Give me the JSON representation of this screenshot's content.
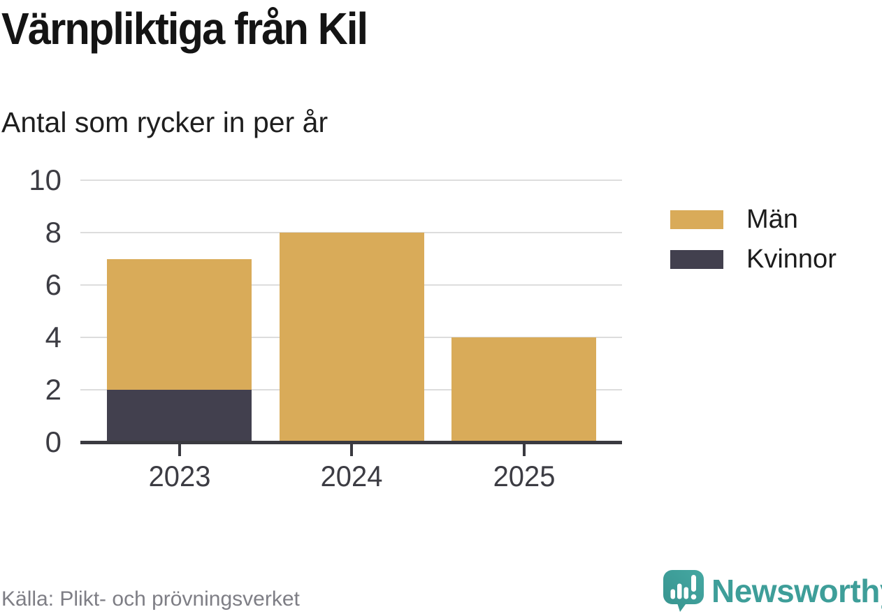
{
  "header": {
    "title": "Värnpliktiga från Kil",
    "subtitle": "Antal som rycker in per år"
  },
  "chart_data": {
    "type": "bar",
    "stacked": true,
    "title": "Värnpliktiga från Kil",
    "subtitle": "Antal som rycker in per år",
    "categories": [
      "2023",
      "2024",
      "2025"
    ],
    "series": [
      {
        "name": "Män",
        "color": "#D9AB59",
        "values": [
          5,
          8,
          4
        ]
      },
      {
        "name": "Kvinnor",
        "color": "#42404E",
        "values": [
          2,
          0,
          0
        ]
      }
    ],
    "totals": [
      7,
      8,
      4
    ],
    "xlabel": "",
    "ylabel": "",
    "ylim": [
      0,
      10
    ],
    "yticks": [
      0,
      2,
      4,
      6,
      8,
      10
    ],
    "grid": true,
    "legend_position": "right"
  },
  "colors": {
    "background": "#FFFFFF",
    "axis": "#3A3A40",
    "gridline": "#DDDDDD",
    "tick_label": "#3C3C43",
    "source_text": "#7E7E85",
    "brand_teal": "#3E9E99"
  },
  "footer": {
    "source": "Källa: Plikt- och prövningsverket"
  },
  "branding": {
    "logo_text": "Newsworthy",
    "logo_icon": "newsworthy-speech-bubble-bar-chart-icon"
  }
}
